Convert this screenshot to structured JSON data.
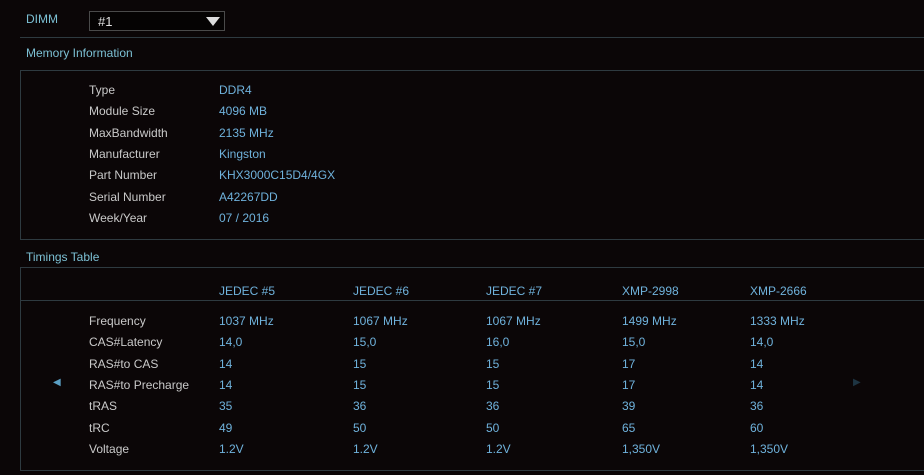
{
  "dimm": {
    "label": "DIMM",
    "selected": "#1"
  },
  "memory": {
    "title": "Memory Information",
    "rows": [
      {
        "label": "Type",
        "value": "DDR4"
      },
      {
        "label": "Module Size",
        "value": "4096 MB"
      },
      {
        "label": "MaxBandwidth",
        "value": "2135 MHz"
      },
      {
        "label": "Manufacturer",
        "value": "Kingston"
      },
      {
        "label": "Part Number",
        "value": "KHX3000C15D4/4GX"
      },
      {
        "label": "Serial Number",
        "value": "A42267DD"
      },
      {
        "label": "Week/Year",
        "value": "07 / 2016"
      }
    ]
  },
  "timings": {
    "title": "Timings Table",
    "columns": [
      "JEDEC #5",
      "JEDEC #6",
      "JEDEC #7",
      "XMP-2998",
      "XMP-2666"
    ],
    "rows": [
      {
        "label": "Frequency",
        "values": [
          "1037 MHz",
          "1067 MHz",
          "1067 MHz",
          "1499 MHz",
          "1333 MHz"
        ]
      },
      {
        "label": "CAS#Latency",
        "values": [
          "14,0",
          "15,0",
          "16,0",
          "15,0",
          "14,0"
        ]
      },
      {
        "label": "RAS#to CAS",
        "values": [
          "14",
          "15",
          "15",
          "17",
          "14"
        ]
      },
      {
        "label": "RAS#to Precharge",
        "values": [
          "14",
          "15",
          "15",
          "17",
          "14"
        ]
      },
      {
        "label": "tRAS",
        "values": [
          "35",
          "36",
          "36",
          "39",
          "36"
        ]
      },
      {
        "label": "tRC",
        "values": [
          "49",
          "50",
          "50",
          "65",
          "60"
        ]
      },
      {
        "label": "Voltage",
        "values": [
          "1.2V",
          "1.2V",
          "1.2V",
          "1,350V",
          "1,350V"
        ]
      }
    ]
  },
  "icons": {
    "prev": "triangle-left-icon",
    "next": "triangle-right-icon",
    "dropdown": "triangle-down-icon"
  }
}
